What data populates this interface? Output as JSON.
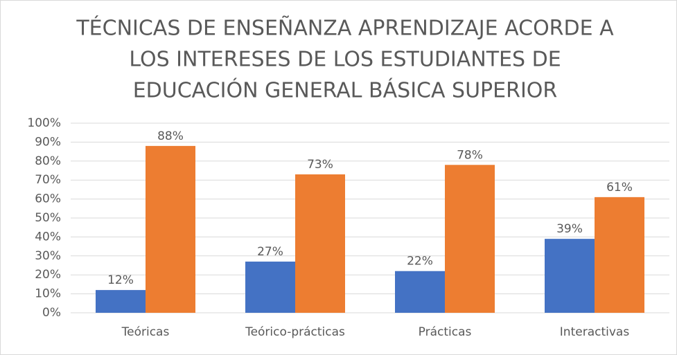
{
  "chart_data": {
    "type": "bar",
    "title": [
      "TÉCNICAS DE ENSEÑANZA APRENDIZAJE ACORDE A",
      "LOS INTERESES DE LOS ESTUDIANTES DE",
      "EDUCACIÓN GENERAL BÁSICA SUPERIOR"
    ],
    "categories": [
      "Teóricas",
      "Teórico-prácticas",
      "Prácticas",
      "Interactivas"
    ],
    "series": [
      {
        "color": "#4472c4",
        "values": [
          12,
          27,
          22,
          39
        ],
        "value_labels": [
          "12%",
          "27%",
          "22%",
          "39%"
        ]
      },
      {
        "color": "#ed7d31",
        "values": [
          88,
          73,
          78,
          61
        ],
        "value_labels": [
          "88%",
          "73%",
          "78%",
          "61%"
        ]
      }
    ],
    "ylim": [
      0,
      100
    ],
    "yticks": [
      {
        "value": 0,
        "label": "0%"
      },
      {
        "value": 10,
        "label": "10%"
      },
      {
        "value": 20,
        "label": "20%"
      },
      {
        "value": 30,
        "label": "30%"
      },
      {
        "value": 40,
        "label": "40%"
      },
      {
        "value": 50,
        "label": "50%"
      },
      {
        "value": 60,
        "label": "60%"
      },
      {
        "value": 70,
        "label": "70%"
      },
      {
        "value": 80,
        "label": "80%"
      },
      {
        "value": 90,
        "label": "90%"
      },
      {
        "value": 100,
        "label": "100%"
      }
    ],
    "grid": true
  }
}
